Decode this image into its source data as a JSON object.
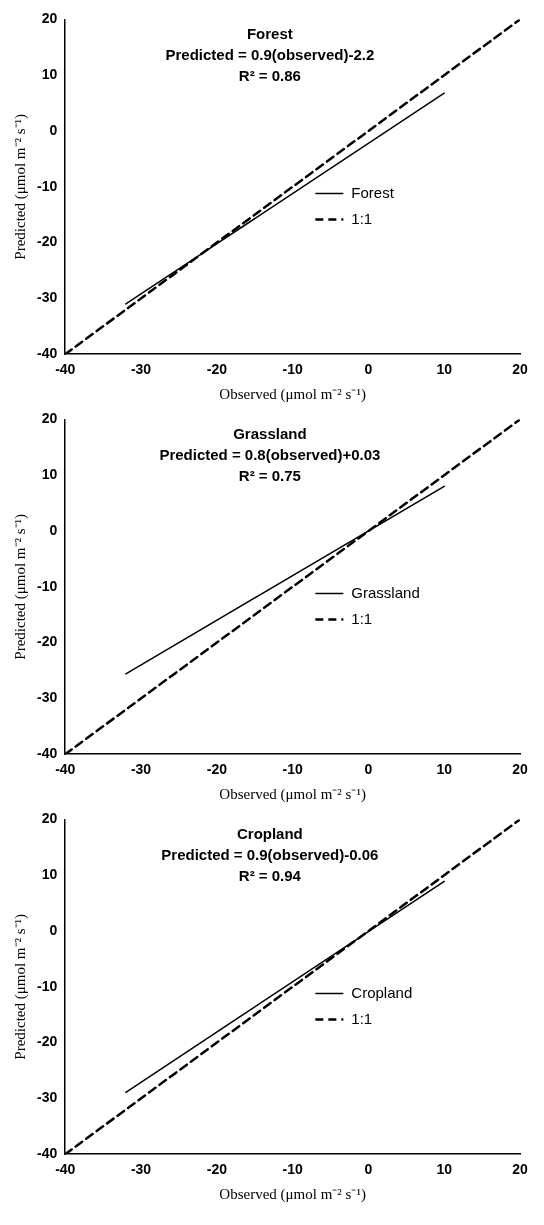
{
  "chart_data": [
    {
      "type": "line",
      "xlabel": "Observed (μmol m⁻² s⁻¹)",
      "ylabel": "Predicted (μmol m⁻² s⁻¹)",
      "annotations": [
        "Forest",
        "Predicted = 0.9(observed)-2.2",
        "R² = 0.86"
      ],
      "xlim": [
        -40,
        20
      ],
      "ylim": [
        -40,
        20
      ],
      "xticks": [
        -40,
        -30,
        -20,
        -10,
        0,
        10,
        20
      ],
      "yticks": [
        -40,
        -30,
        -20,
        -10,
        0,
        10,
        20
      ],
      "grid": false,
      "legend": "right",
      "marker": "none",
      "series": [
        {
          "name": "Forest",
          "color": "#000000",
          "x": [
            -32,
            10
          ],
          "values": [
            -31,
            6.8
          ],
          "line_style": "solid"
        },
        {
          "name": "1:1",
          "color": "#000000",
          "x": [
            -40,
            20
          ],
          "values": [
            -40,
            20
          ],
          "line_style": "dashed"
        }
      ]
    },
    {
      "type": "line",
      "xlabel": "Observed (μmol m⁻² s⁻¹)",
      "ylabel": "Predicted (μmol m⁻² s⁻¹)",
      "annotations": [
        "Grassland",
        "Predicted = 0.8(observed)+0.03",
        "R² = 0.75"
      ],
      "xlim": [
        -40,
        20
      ],
      "ylim": [
        -40,
        20
      ],
      "xticks": [
        -40,
        -30,
        -20,
        -10,
        0,
        10,
        20
      ],
      "yticks": [
        -40,
        -30,
        -20,
        -10,
        0,
        10,
        20
      ],
      "grid": false,
      "legend": "right",
      "marker": "none",
      "series": [
        {
          "name": "Grassland",
          "color": "#000000",
          "x": [
            -32,
            10
          ],
          "values": [
            -25.6,
            8
          ],
          "line_style": "solid"
        },
        {
          "name": "1:1",
          "color": "#000000",
          "x": [
            -40,
            20
          ],
          "values": [
            -40,
            20
          ],
          "line_style": "dashed"
        }
      ]
    },
    {
      "type": "line",
      "xlabel": "Observed (μmol m⁻² s⁻¹)",
      "ylabel": "Predicted (μmol m⁻² s⁻¹)",
      "annotations": [
        "Cropland",
        "Predicted = 0.9(observed)-0.06",
        "R² = 0.94"
      ],
      "xlim": [
        -40,
        20
      ],
      "ylim": [
        -40,
        20
      ],
      "xticks": [
        -40,
        -30,
        -20,
        -10,
        0,
        10,
        20
      ],
      "yticks": [
        -40,
        -30,
        -20,
        -10,
        0,
        10,
        20
      ],
      "grid": false,
      "legend": "right",
      "marker": "none",
      "series": [
        {
          "name": "Cropland",
          "color": "#000000",
          "x": [
            -32,
            10
          ],
          "values": [
            -28.9,
            8.9
          ],
          "line_style": "solid"
        },
        {
          "name": "1:1",
          "color": "#000000",
          "x": [
            -40,
            20
          ],
          "values": [
            -40,
            20
          ],
          "line_style": "dashed"
        }
      ]
    }
  ]
}
